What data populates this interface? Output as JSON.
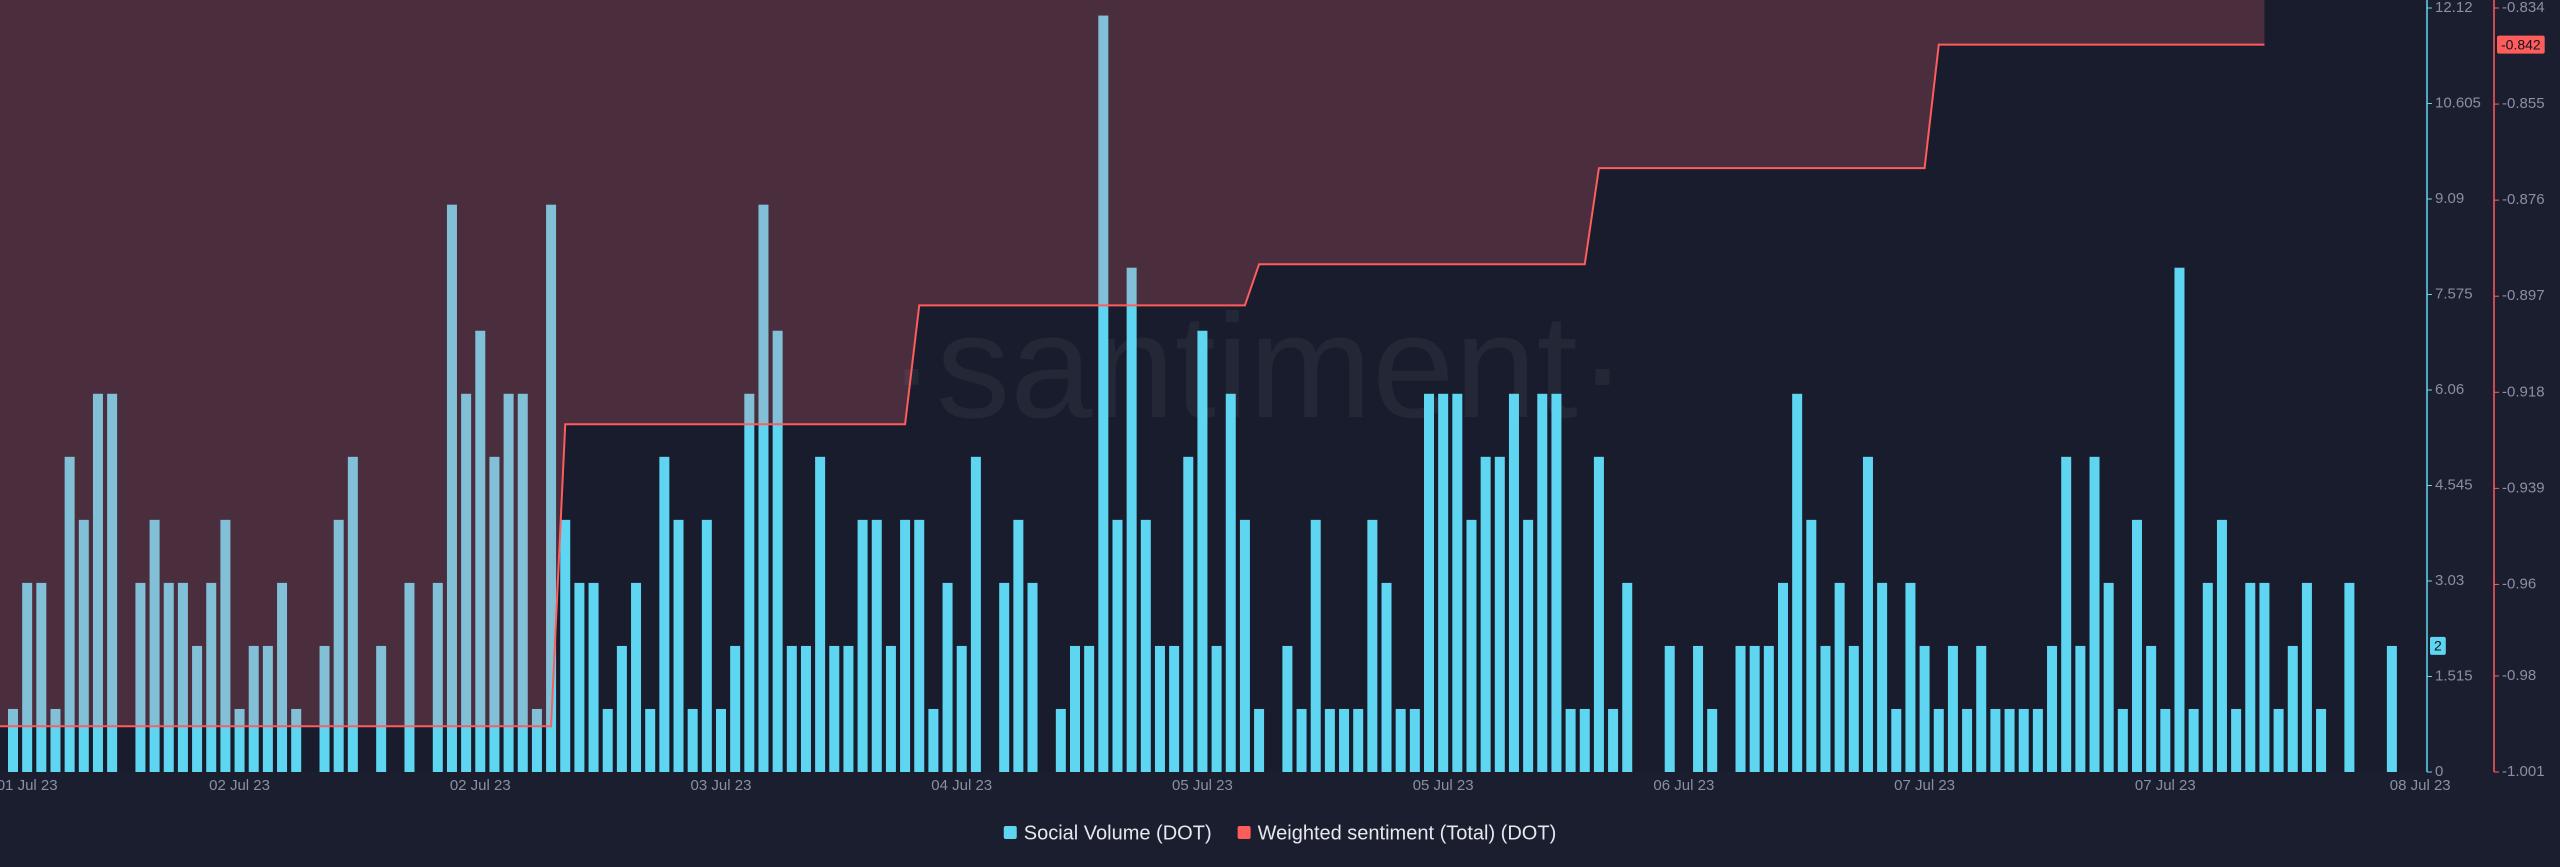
{
  "chart_data": {
    "type": "bar-line",
    "watermark": "·santiment·",
    "categories": [
      null,
      "01 Jul 23",
      null,
      null,
      null,
      null,
      null,
      null,
      null,
      null,
      null,
      null,
      null,
      null,
      null,
      null,
      "02 Jul 23",
      null,
      null,
      null,
      null,
      null,
      null,
      null,
      null,
      null,
      null,
      null,
      null,
      null,
      null,
      null,
      null,
      "02 Jul 23",
      null,
      null,
      null,
      null,
      null,
      null,
      null,
      null,
      null,
      null,
      null,
      null,
      null,
      null,
      null,
      null,
      "03 Jul 23",
      null,
      null,
      null,
      null,
      null,
      null,
      null,
      null,
      null,
      null,
      null,
      null,
      null,
      null,
      null,
      null,
      "04 Jul 23",
      null,
      null,
      null,
      null,
      null,
      null,
      null,
      null,
      null,
      null,
      null,
      null,
      null,
      null,
      null,
      null,
      "05 Jul 23",
      null,
      null,
      null,
      null,
      null,
      null,
      null,
      null,
      null,
      null,
      null,
      null,
      null,
      null,
      null,
      null,
      "05 Jul 23",
      null,
      null,
      null,
      null,
      null,
      null,
      null,
      null,
      null,
      null,
      null,
      null,
      null,
      null,
      null,
      null,
      "06 Jul 23",
      null,
      null,
      null,
      null,
      null,
      null,
      null,
      null,
      null,
      null,
      null,
      null,
      null,
      null,
      null,
      null,
      "07 Jul 23",
      null,
      null,
      null,
      null,
      null,
      null,
      null,
      null,
      null,
      null,
      null,
      null,
      null,
      null,
      null,
      null,
      "07 Jul 23",
      null,
      null,
      null,
      null,
      null,
      null,
      null,
      null,
      null,
      null,
      null,
      null,
      null,
      null,
      null,
      null,
      null,
      "08 Jul 23"
    ],
    "series": [
      {
        "name": "Social Volume (DOT)",
        "type": "bar",
        "color": "#5fd6f1",
        "axis": "y",
        "values": [
          1,
          3,
          3,
          1,
          5,
          4,
          6,
          6,
          0,
          3,
          4,
          3,
          3,
          2,
          3,
          4,
          1,
          2,
          2,
          3,
          1,
          0,
          2,
          4,
          5,
          0,
          2,
          0,
          3,
          0,
          3,
          9,
          6,
          7,
          5,
          6,
          6,
          1,
          9,
          4,
          3,
          3,
          1,
          2,
          3,
          1,
          5,
          4,
          1,
          4,
          1,
          2,
          6,
          9,
          7,
          2,
          2,
          5,
          2,
          2,
          4,
          4,
          2,
          4,
          4,
          1,
          3,
          2,
          5,
          0,
          3,
          4,
          3,
          0,
          1,
          2,
          2,
          12,
          4,
          8,
          4,
          2,
          2,
          5,
          7,
          2,
          6,
          4,
          1,
          0,
          2,
          1,
          4,
          1,
          1,
          1,
          4,
          3,
          1,
          1,
          6,
          6,
          6,
          4,
          5,
          5,
          6,
          4,
          6,
          6,
          1,
          1,
          5,
          1,
          3,
          0,
          0,
          2,
          0,
          2,
          1,
          0,
          2,
          2,
          2,
          3,
          6,
          4,
          2,
          3,
          2,
          5,
          3,
          1,
          3,
          2,
          1,
          2,
          1,
          2,
          1,
          1,
          1,
          1,
          2,
          5,
          2,
          5,
          3,
          1,
          4,
          2,
          1,
          8,
          1,
          3,
          4,
          1,
          3,
          3,
          1,
          2,
          3,
          1,
          0,
          3,
          0,
          0,
          2,
          null,
          null
        ]
      },
      {
        "name": "Weighted sentiment (Total) (DOT)",
        "type": "line",
        "color": "#ff5c5c",
        "axis": "y2",
        "values": [
          -0.991,
          -0.991,
          -0.991,
          -0.991,
          -0.991,
          -0.991,
          -0.991,
          -0.991,
          -0.991,
          -0.991,
          -0.991,
          -0.991,
          -0.991,
          -0.991,
          -0.991,
          -0.991,
          -0.991,
          -0.991,
          -0.991,
          -0.991,
          -0.991,
          -0.991,
          -0.991,
          -0.991,
          -0.991,
          -0.991,
          -0.991,
          -0.991,
          -0.991,
          -0.991,
          -0.991,
          -0.991,
          -0.991,
          -0.991,
          -0.991,
          -0.991,
          -0.991,
          -0.991,
          -0.991,
          -0.925,
          -0.925,
          -0.925,
          -0.925,
          -0.925,
          -0.925,
          -0.925,
          -0.925,
          -0.925,
          -0.925,
          -0.925,
          -0.925,
          -0.925,
          -0.925,
          -0.925,
          -0.925,
          -0.925,
          -0.925,
          -0.925,
          -0.925,
          -0.925,
          -0.925,
          -0.925,
          -0.925,
          -0.925,
          -0.899,
          -0.899,
          -0.899,
          -0.899,
          -0.899,
          -0.899,
          -0.899,
          -0.899,
          -0.899,
          -0.899,
          -0.899,
          -0.899,
          -0.899,
          -0.899,
          -0.899,
          -0.899,
          -0.899,
          -0.899,
          -0.899,
          -0.899,
          -0.899,
          -0.899,
          -0.899,
          -0.899,
          -0.89,
          -0.89,
          -0.89,
          -0.89,
          -0.89,
          -0.89,
          -0.89,
          -0.89,
          -0.89,
          -0.89,
          -0.89,
          -0.89,
          -0.89,
          -0.89,
          -0.89,
          -0.89,
          -0.89,
          -0.89,
          -0.89,
          -0.89,
          -0.89,
          -0.89,
          -0.89,
          -0.89,
          -0.869,
          -0.869,
          -0.869,
          -0.869,
          -0.869,
          -0.869,
          -0.869,
          -0.869,
          -0.869,
          -0.869,
          -0.869,
          -0.869,
          -0.869,
          -0.869,
          -0.869,
          -0.869,
          -0.869,
          -0.869,
          -0.869,
          -0.869,
          -0.869,
          -0.869,
          -0.869,
          -0.869,
          -0.842,
          -0.842,
          -0.842,
          -0.842,
          -0.842,
          -0.842,
          -0.842,
          -0.842,
          -0.842,
          -0.842,
          -0.842,
          -0.842,
          -0.842,
          -0.842,
          -0.842,
          -0.842,
          -0.842,
          -0.842,
          -0.842,
          -0.842,
          -0.842,
          -0.842,
          -0.842,
          -0.842,
          null,
          null,
          null,
          null,
          null,
          null,
          null,
          null,
          null,
          null,
          null
        ]
      }
    ],
    "ylim": [
      0,
      12.12
    ],
    "yticks": [
      0,
      1.515,
      3.03,
      4.545,
      6.06,
      7.575,
      9.09,
      10.605,
      12.12
    ],
    "y2lim": [
      -1.001,
      -0.834
    ],
    "y2ticks": [
      -1.001,
      -0.98,
      -0.96,
      -0.939,
      -0.918,
      -0.897,
      -0.876,
      -0.855,
      -0.834
    ],
    "legend": "bottom"
  }
}
